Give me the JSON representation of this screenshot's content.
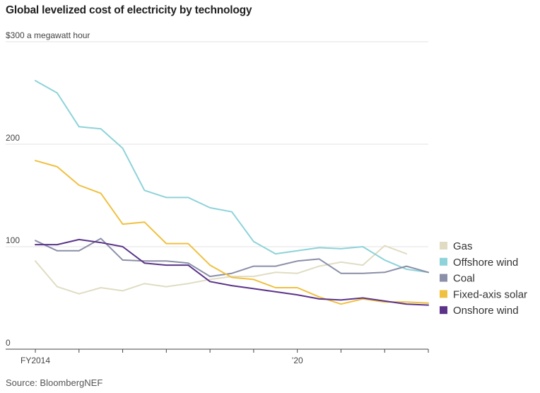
{
  "chart_data": {
    "type": "line",
    "title": "Global levelized cost of electricity by technology",
    "ylabel": "$300 a megawatt hour",
    "xlabel": "",
    "ylim": [
      0,
      300
    ],
    "y_ticks": [
      {
        "value": 300,
        "label": "$300 a megawatt hour"
      },
      {
        "value": 200,
        "label": "200"
      },
      {
        "value": 100,
        "label": "100"
      },
      {
        "value": 0,
        "label": "0"
      }
    ],
    "x": [
      2014,
      2014.5,
      2015,
      2015.5,
      2016,
      2016.5,
      2017,
      2017.5,
      2018,
      2018.5,
      2019,
      2019.5,
      2020,
      2020.5,
      2021,
      2021.5,
      2022,
      2022.5,
      2023
    ],
    "xlim": [
      2014,
      2023
    ],
    "x_ticks": [
      2014,
      2015,
      2016,
      2017,
      2018,
      2019,
      2020,
      2021,
      2022,
      2023
    ],
    "x_tick_labels": [
      {
        "value": 2014,
        "label": "FY2014"
      },
      {
        "value": 2020,
        "label": "’20"
      }
    ],
    "series": [
      {
        "name": "Gas",
        "color": "#e0dcc3",
        "values": [
          86,
          61,
          54,
          60,
          57,
          64,
          61,
          64,
          68,
          71,
          71,
          75,
          74,
          81,
          85,
          82,
          101,
          93,
          null
        ]
      },
      {
        "name": "Offshore wind",
        "color": "#8dd3d9",
        "values": [
          262,
          250,
          217,
          215,
          196,
          155,
          148,
          148,
          138,
          134,
          105,
          93,
          96,
          99,
          98,
          100,
          87,
          78,
          75
        ]
      },
      {
        "name": "Coal",
        "color": "#8b8fa8",
        "values": [
          106,
          96,
          96,
          108,
          87,
          86,
          86,
          84,
          71,
          74,
          81,
          81,
          86,
          88,
          74,
          74,
          75,
          81,
          75
        ]
      },
      {
        "name": "Fixed-axis solar",
        "color": "#f0c040",
        "values": [
          184,
          178,
          160,
          152,
          122,
          124,
          103,
          103,
          82,
          70,
          68,
          60,
          60,
          51,
          44,
          49,
          46,
          46,
          45
        ]
      },
      {
        "name": "Onshore wind",
        "color": "#5b3489",
        "values": [
          102,
          102,
          107,
          104,
          100,
          84,
          82,
          82,
          66,
          62,
          59,
          56,
          53,
          49,
          48,
          50,
          47,
          44,
          43
        ]
      }
    ],
    "legend_placement": "right",
    "grid": true
  },
  "source": "Source: BloombergNEF"
}
